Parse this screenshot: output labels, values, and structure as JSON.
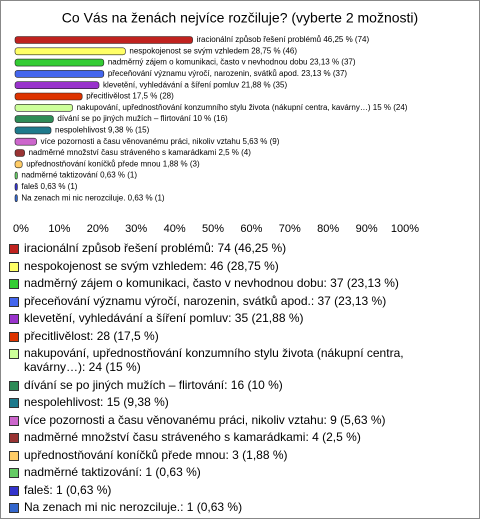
{
  "chart_data": {
    "type": "bar",
    "orientation": "horizontal",
    "title": "Co Vás na ženách nejvíce rozčiluje? (vyberte 2 možnosti)",
    "values": [
      46.25,
      28.75,
      23.13,
      23.13,
      21.88,
      17.5,
      15,
      10,
      9.38,
      5.63,
      2.5,
      1.88,
      0.63,
      0.63,
      0.63
    ],
    "value_labels": [
      "iracionální způsob řešení problémů 46,25 % (74)",
      "nespokojenost se svým vzhledem 28,75 % (46)",
      "nadměrný zájem o komunikaci, často v nevhodnou dobu 23,13 % (37)",
      "přeceňování významu výročí, narozenin, svátků apod. 23,13 % (37)",
      "klevetění, vyhledávání a šíření pomluv 21,88 % (35)",
      "přecitlivělost 17,5 % (28)",
      "nakupování, upřednostňování konzumního stylu života (nákupní centra, kavárny…) 15 % (24)",
      "dívání se po jiných mužích – flirtování 10 % (16)",
      "nespolehlivost 9,38 % (15)",
      "více pozornosti a času věnovanému práci, nikoliv vztahu 5,63 % (9)",
      "nadměrné množství času stráveného s kamarádkami 2,5 % (4)",
      "upřednostňování koníčků přede mnou 1,88 % (3)",
      "nadměrné taktizování 0,63 % (1)",
      "faleš 0,63 % (1)",
      "Na zenach mi nic nerozciluje. 0,63 % (1)"
    ],
    "legend": [
      "iracionální způsob řešení problémů: 74 (46,25 %)",
      "nespokojenost se svým vzhledem: 46 (28,75 %)",
      "nadměrný zájem o komunikaci, často v nevhodnou dobu: 37 (23,13 %)",
      "přeceňování významu výročí, narozenin, svátků apod.: 37 (23,13 %)",
      "klevetění, vyhledávání a šíření pomluv: 35 (21,88 %)",
      "přecitlivělost: 28 (17,5 %)",
      "nakupování, upřednostňování konzumního stylu života (nákupní centra, kavárny…): 24 (15 %)",
      "dívání se po jiných mužích – flirtování: 16 (10 %)",
      "nespolehlivost: 15 (9,38 %)",
      "více pozornosti a času věnovanému práci, nikoliv vztahu: 9 (5,63 %)",
      "nadměrné množství času stráveného s kamarádkami: 4 (2,5 %)",
      "upřednostňování koníčků přede mnou: 3 (1,88 %)",
      "nadměrné taktizování: 1 (0,63 %)",
      "faleš: 1 (0,63 %)",
      "Na zenach mi nic nerozciluje.: 1 (0,63 %)"
    ],
    "colors": [
      "#c0221f",
      "#ffff66",
      "#33cc33",
      "#4466ee",
      "#9933cc",
      "#dd3300",
      "#ccff99",
      "#2e8b57",
      "#1e7a8c",
      "#cc66cc",
      "#993333",
      "#ffcc66",
      "#66cc66",
      "#3333cc",
      "#3366cc"
    ],
    "xlim": [
      0,
      100
    ],
    "xticks": [
      {
        "value": 0,
        "label": "0%"
      },
      {
        "value": 10,
        "label": "10%"
      },
      {
        "value": 20,
        "label": "20%"
      },
      {
        "value": 30,
        "label": "30%"
      },
      {
        "value": 40,
        "label": "40%"
      },
      {
        "value": 50,
        "label": "50%"
      },
      {
        "value": 60,
        "label": "60%"
      },
      {
        "value": 70,
        "label": "70%"
      },
      {
        "value": 80,
        "label": "80%"
      },
      {
        "value": 90,
        "label": "90%"
      },
      {
        "value": 100,
        "label": "100%"
      }
    ],
    "grid": false
  }
}
